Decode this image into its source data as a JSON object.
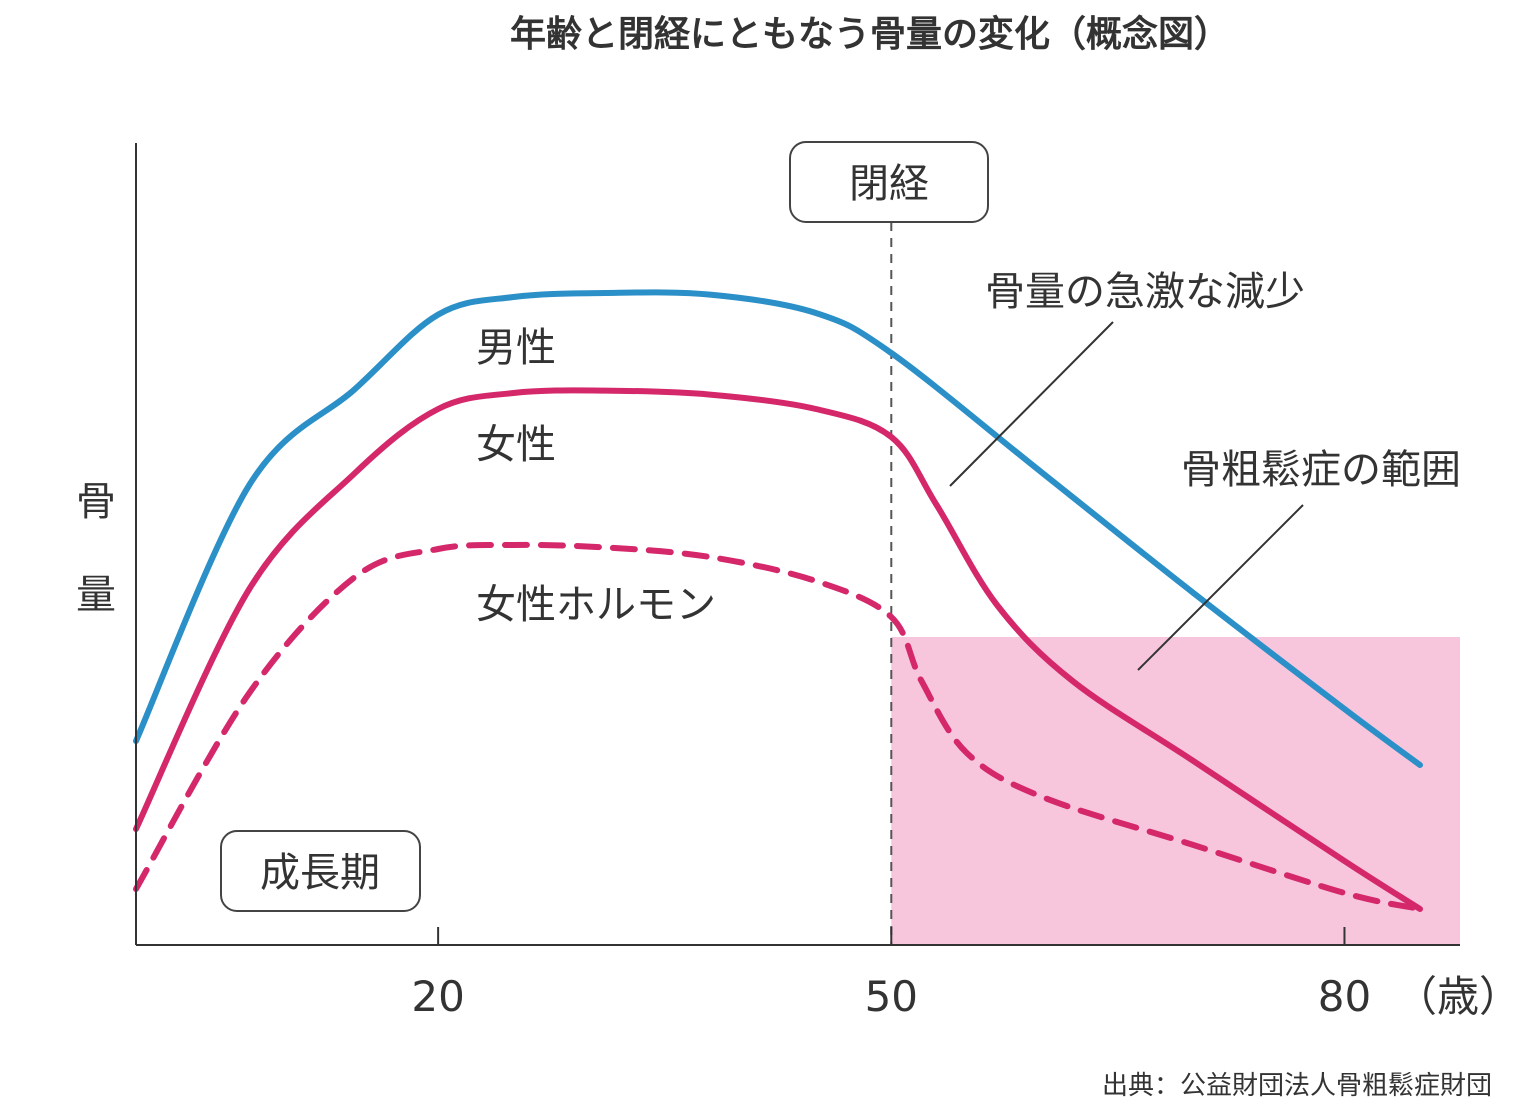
{
  "chart_data": {
    "type": "line",
    "title": "年齢と閉経にともなう骨量の変化（概念図）",
    "ylabel_chars": [
      "骨",
      "量"
    ],
    "x_unit": "（歳）",
    "x_ticks": [
      20,
      50,
      80
    ],
    "x_tick_labels": [
      "20",
      "50",
      "80"
    ],
    "xlim": [
      0,
      85
    ],
    "ylim": [
      0,
      100
    ],
    "grid": false,
    "colors": {
      "male": "#2b8fc8",
      "female": "#d4286b",
      "hormone": "#d4286b",
      "osteoporosis_zone": "#f7c6dc",
      "axis": "#333333"
    },
    "series": [
      {
        "name": "男性",
        "style": "solid",
        "color_key": "male",
        "x": [
          0,
          7.5,
          14.5,
          20,
          25,
          31,
          38,
          45,
          50,
          60,
          70,
          80,
          85
        ],
        "y": [
          25.5,
          57.5,
          69.5,
          78.8,
          81.0,
          81.5,
          81.3,
          79.0,
          74.0,
          59.0,
          44.0,
          29.5,
          22.5
        ]
      },
      {
        "name": "女性",
        "style": "solid",
        "color_key": "female",
        "x": [
          0,
          7.5,
          14.5,
          20,
          25,
          31,
          38,
          45,
          50,
          53,
          57,
          62,
          70,
          80,
          85
        ],
        "y": [
          14.5,
          44.5,
          59.0,
          67.0,
          69.0,
          69.3,
          68.8,
          67.0,
          63.5,
          55.0,
          42.5,
          33.0,
          23.0,
          10.5,
          4.5
        ]
      },
      {
        "name": "女性ホルモン",
        "style": "dashed",
        "color_key": "hormone",
        "x": [
          0,
          7.5,
          14.5,
          20,
          25,
          31,
          38,
          45,
          50,
          52,
          55,
          60,
          70,
          80,
          85
        ],
        "y": [
          7.0,
          31.5,
          46.0,
          49.5,
          50.0,
          49.7,
          48.5,
          45.5,
          41.0,
          33.0,
          24.0,
          18.5,
          12.5,
          6.5,
          4.5
        ]
      }
    ],
    "zone": {
      "label": "骨粗鬆症の範囲",
      "x_start": 50,
      "x_end": 88,
      "y_top": 38.5
    },
    "menopause": {
      "label": "閉経",
      "x": 50
    },
    "annotations": {
      "growth_period": "成長期",
      "rapid_loss": "骨量の急激な減少"
    },
    "source": "出典：公益財団法人骨粗鬆症財団"
  }
}
